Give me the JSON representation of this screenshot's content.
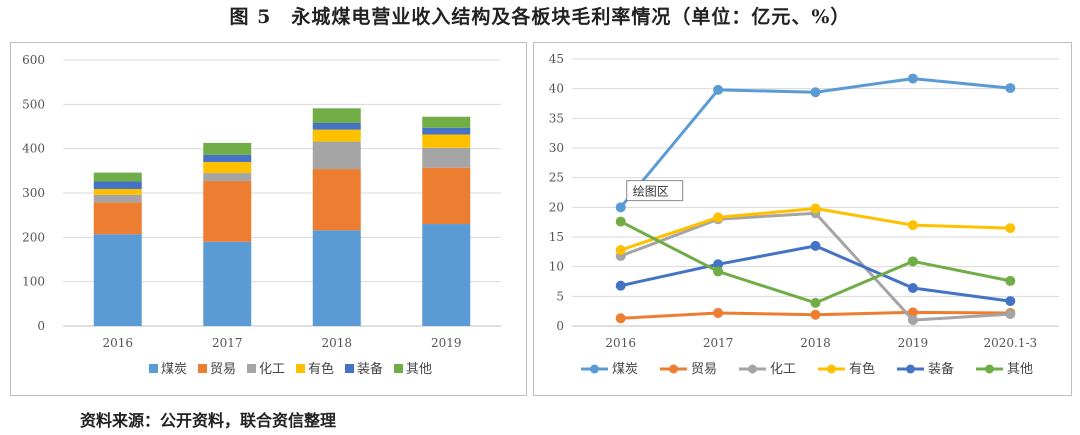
{
  "title": "图 5　永城煤电营业收入结构及各板块毛利率情况（单位：亿元、%）",
  "source": "资料来源：公开资料，联合资信整理",
  "chart_data": [
    {
      "type": "bar",
      "stacked": true,
      "categories": [
        "2016",
        "2017",
        "2018",
        "2019"
      ],
      "ylim": [
        0,
        600
      ],
      "yticks": [
        0,
        100,
        200,
        300,
        400,
        500,
        600
      ],
      "series": [
        {
          "name": "煤炭",
          "color": "#5b9bd5",
          "values": [
            207,
            190,
            216,
            230
          ]
        },
        {
          "name": "贸易",
          "color": "#ed7d31",
          "values": [
            72,
            137,
            138,
            127
          ]
        },
        {
          "name": "化工",
          "color": "#a5a5a5",
          "values": [
            17,
            18,
            62,
            45
          ]
        },
        {
          "name": "有色",
          "color": "#ffc000",
          "values": [
            13,
            25,
            27,
            30
          ]
        },
        {
          "name": "装备",
          "color": "#4472c4",
          "values": [
            17,
            16,
            15,
            15
          ]
        },
        {
          "name": "其他",
          "color": "#70ad47",
          "values": [
            20,
            27,
            33,
            25
          ]
        }
      ],
      "legend_position": "bottom"
    },
    {
      "type": "line",
      "categories": [
        "2016",
        "2017",
        "2018",
        "2019",
        "2020.1-3"
      ],
      "ylim": [
        0,
        45
      ],
      "yticks": [
        0,
        5,
        10,
        15,
        20,
        25,
        30,
        35,
        40,
        45
      ],
      "series": [
        {
          "name": "煤炭",
          "color": "#5b9bd5",
          "values": [
            20.0,
            39.8,
            39.4,
            41.7,
            40.1
          ]
        },
        {
          "name": "贸易",
          "color": "#ed7d31",
          "values": [
            1.3,
            2.2,
            1.9,
            2.3,
            2.2
          ]
        },
        {
          "name": "化工",
          "color": "#a5a5a5",
          "values": [
            11.8,
            18.0,
            19.0,
            1.0,
            2.0
          ]
        },
        {
          "name": "有色",
          "color": "#ffc000",
          "values": [
            12.8,
            18.3,
            19.8,
            17.0,
            16.5
          ]
        },
        {
          "name": "装备",
          "color": "#4472c4",
          "values": [
            6.8,
            10.4,
            13.5,
            6.4,
            4.2
          ]
        },
        {
          "name": "其他",
          "color": "#70ad47",
          "values": [
            17.6,
            9.2,
            3.9,
            10.9,
            7.6
          ]
        }
      ],
      "annotation": "绘图区",
      "legend_position": "bottom"
    }
  ]
}
